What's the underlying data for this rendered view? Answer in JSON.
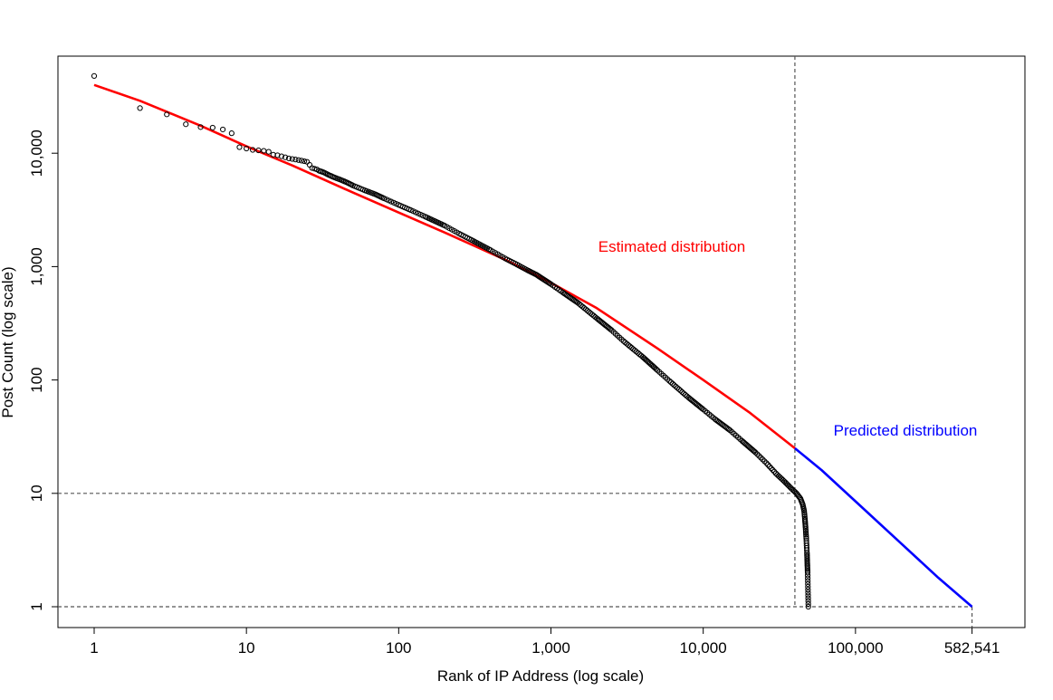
{
  "chart_data": {
    "type": "scatter",
    "title": "",
    "xlabel": "Rank of IP Address (log scale)",
    "ylabel": "Post Count (log scale)",
    "xscale": "log",
    "yscale": "log",
    "xlim": [
      1,
      582541
    ],
    "ylim": [
      1,
      50000
    ],
    "grid": false,
    "legend": "none",
    "x_ticks": [
      {
        "value": 1,
        "label": "1"
      },
      {
        "value": 10,
        "label": "10"
      },
      {
        "value": 100,
        "label": "100"
      },
      {
        "value": 1000,
        "label": "1,000"
      },
      {
        "value": 10000,
        "label": "10,000"
      },
      {
        "value": 100000,
        "label": "100,000"
      },
      {
        "value": 582541,
        "label": "582,541"
      }
    ],
    "y_ticks": [
      {
        "value": 1,
        "label": "1"
      },
      {
        "value": 10,
        "label": "10"
      },
      {
        "value": 100,
        "label": "100"
      },
      {
        "value": 1000,
        "label": "1,000"
      },
      {
        "value": 10000,
        "label": "10,000"
      }
    ],
    "reference_lines": [
      {
        "orientation": "vertical",
        "x": 40000,
        "y_from": 1,
        "y_to": 50000
      },
      {
        "orientation": "vertical",
        "x": 582541,
        "y_from": 0.7,
        "y_to": 1
      },
      {
        "orientation": "horizontal",
        "y": 10,
        "x_from": 0.75,
        "x_to": 40000
      },
      {
        "orientation": "horizontal",
        "y": 1,
        "x_from": 0.75,
        "x_to": 582541
      }
    ],
    "series": [
      {
        "type": "scatter",
        "color": "#000000",
        "points": [
          [
            1,
            48000
          ],
          [
            2,
            25000
          ],
          [
            3,
            22000
          ],
          [
            4,
            18000
          ],
          [
            5,
            17000
          ],
          [
            6,
            16800
          ],
          [
            7,
            16200
          ],
          [
            8,
            15000
          ],
          [
            9,
            11300
          ],
          [
            10,
            11000
          ],
          [
            11,
            10700
          ],
          [
            12,
            10600
          ],
          [
            13,
            10500
          ],
          [
            14,
            10300
          ],
          [
            15,
            9700
          ],
          [
            16,
            9600
          ],
          [
            17,
            9400
          ],
          [
            18,
            9200
          ],
          [
            19,
            9000
          ],
          [
            20,
            8900
          ],
          [
            21,
            8800
          ],
          [
            22,
            8700
          ],
          [
            23,
            8600
          ],
          [
            24,
            8500
          ],
          [
            25,
            8400
          ],
          [
            26,
            7900
          ],
          [
            27,
            7400
          ],
          [
            28,
            7300
          ],
          [
            29,
            7200
          ],
          [
            30,
            7000
          ],
          [
            32,
            6800
          ],
          [
            35,
            6400
          ],
          [
            38,
            6100
          ],
          [
            42,
            5800
          ],
          [
            46,
            5500
          ],
          [
            50,
            5200
          ],
          [
            60,
            4700
          ],
          [
            70,
            4350
          ],
          [
            80,
            4000
          ],
          [
            100,
            3500
          ],
          [
            120,
            3150
          ],
          [
            150,
            2750
          ],
          [
            200,
            2300
          ],
          [
            250,
            1950
          ],
          [
            300,
            1720
          ],
          [
            400,
            1400
          ],
          [
            500,
            1180
          ],
          [
            600,
            1040
          ],
          [
            700,
            930
          ],
          [
            800,
            850
          ],
          [
            1000,
            700
          ],
          [
            1200,
            590
          ],
          [
            1500,
            480
          ],
          [
            2000,
            350
          ],
          [
            2500,
            275
          ],
          [
            3000,
            220
          ],
          [
            4000,
            160
          ],
          [
            5000,
            122
          ],
          [
            6000,
            98
          ],
          [
            8000,
            70
          ],
          [
            10000,
            55
          ],
          [
            12000,
            45
          ],
          [
            15000,
            36
          ],
          [
            18000,
            29
          ],
          [
            22000,
            23
          ],
          [
            26000,
            18.5
          ],
          [
            30000,
            15
          ],
          [
            34000,
            12.8
          ],
          [
            38000,
            11
          ],
          [
            41000,
            10
          ],
          [
            43500,
            9
          ],
          [
            45000,
            8
          ],
          [
            46000,
            7
          ],
          [
            46500,
            6
          ],
          [
            47000,
            5
          ],
          [
            47500,
            4
          ],
          [
            48000,
            3
          ],
          [
            48500,
            2
          ],
          [
            49000,
            1
          ]
        ]
      },
      {
        "name": "Estimated distribution",
        "type": "line",
        "color": "#ff0000",
        "points": [
          [
            1,
            40000
          ],
          [
            2,
            29000
          ],
          [
            5,
            17500
          ],
          [
            10,
            11500
          ],
          [
            20,
            7800
          ],
          [
            50,
            4500
          ],
          [
            100,
            3000
          ],
          [
            200,
            2000
          ],
          [
            500,
            1150
          ],
          [
            1000,
            720
          ],
          [
            2000,
            430
          ],
          [
            5000,
            190
          ],
          [
            10000,
            100
          ],
          [
            20000,
            52
          ],
          [
            40000,
            25
          ]
        ],
        "annotation": "Estimated distribution"
      },
      {
        "name": "Predicted distribution",
        "type": "line",
        "color": "#0000ff",
        "points": [
          [
            40000,
            25
          ],
          [
            60000,
            16
          ],
          [
            100000,
            8.5
          ],
          [
            200000,
            3.6
          ],
          [
            350000,
            1.8
          ],
          [
            582541,
            1
          ]
        ],
        "annotation": "Predicted distribution"
      }
    ]
  }
}
